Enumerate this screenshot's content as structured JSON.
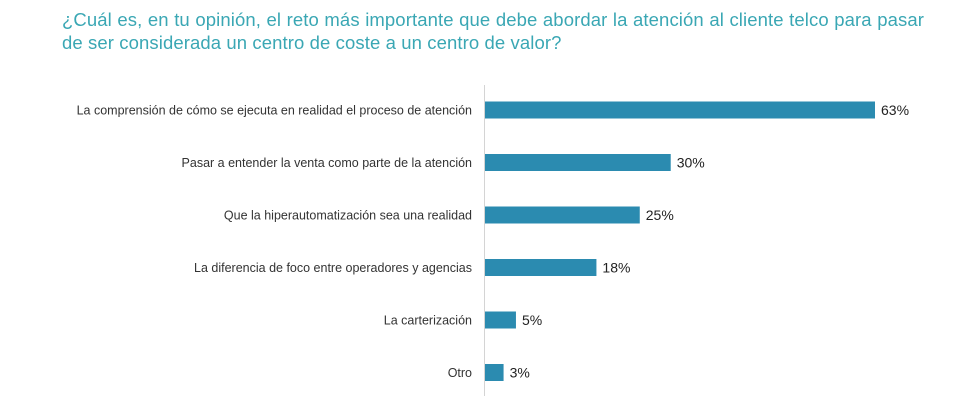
{
  "chart_data": {
    "type": "bar",
    "orientation": "horizontal",
    "title": "¿Cuál es, en tu opinión, el reto más importante que debe abordar la atención al cliente telco para pasar de ser considerada un centro de coste a un centro de valor?",
    "categories": [
      "La comprensión de cómo se ejecuta en realidad el proceso de atención",
      "Pasar a entender la venta como parte de la atención",
      "Que la hiperautomatización sea una realidad",
      "La diferencia de foco entre operadores y agencias",
      "La carterización",
      "Otro"
    ],
    "values": [
      63,
      30,
      25,
      18,
      5,
      3
    ],
    "value_labels": [
      "63%",
      "30%",
      "25%",
      "18%",
      "5%",
      "3%"
    ],
    "xlim": [
      0,
      63
    ],
    "bar_color": "#2b8bb0",
    "xlabel": "",
    "ylabel": "",
    "grid": false,
    "legend": "none"
  }
}
